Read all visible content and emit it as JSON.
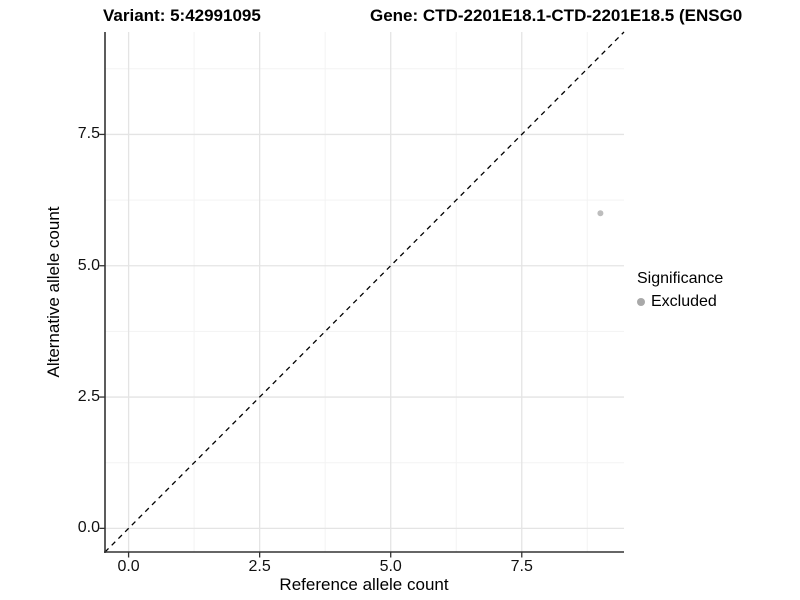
{
  "header": {
    "variant_title": "Variant: 5:42991095",
    "gene_title": "Gene: CTD-2201E18.1-CTD-2201E18.5 (ENSG0"
  },
  "chart_data": {
    "type": "scatter",
    "title": "Variant: 5:42991095 / Gene: CTD-2201E18.1-CTD-2201E18.5 (ENSG0",
    "xlabel": "Reference allele count",
    "ylabel": "Alternative allele count",
    "xlim": [
      -0.45,
      9.45
    ],
    "ylim": [
      -0.45,
      9.45
    ],
    "x_ticks": {
      "values": [
        0,
        2.5,
        5,
        7.5
      ],
      "labels": [
        "0.0",
        "2.5",
        "5.0",
        "7.5"
      ]
    },
    "y_ticks": {
      "values": [
        0,
        2.5,
        5,
        7.5
      ],
      "labels": [
        "0.0",
        "2.5",
        "5.0",
        "7.5"
      ]
    },
    "x_minor_ticks": [
      1.25,
      3.75,
      6.25,
      8.75
    ],
    "y_minor_ticks": [
      1.25,
      3.75,
      6.25,
      8.75
    ],
    "grid": "on",
    "legend_position": "right",
    "series": [
      {
        "name": "Excluded",
        "color": "#bdbdbd",
        "marker": "circle",
        "marker_radius": 3,
        "points": [
          {
            "x": 9,
            "y": 6
          }
        ]
      }
    ],
    "reference_line": {
      "description": "identity line y = x",
      "style": "dashed",
      "color": "#000000",
      "from": {
        "x": -0.45,
        "y": -0.45
      },
      "to": {
        "x": 9.45,
        "y": 9.45
      }
    },
    "colors": {
      "major_grid": "#e4e4e4",
      "minor_grid": "#f3f3f3",
      "axis_line": "#333333",
      "tick_text": "#111111"
    }
  },
  "legend": {
    "title": "Significance",
    "items": [
      {
        "label": "Excluded",
        "color": "#a9a9a9"
      }
    ]
  }
}
